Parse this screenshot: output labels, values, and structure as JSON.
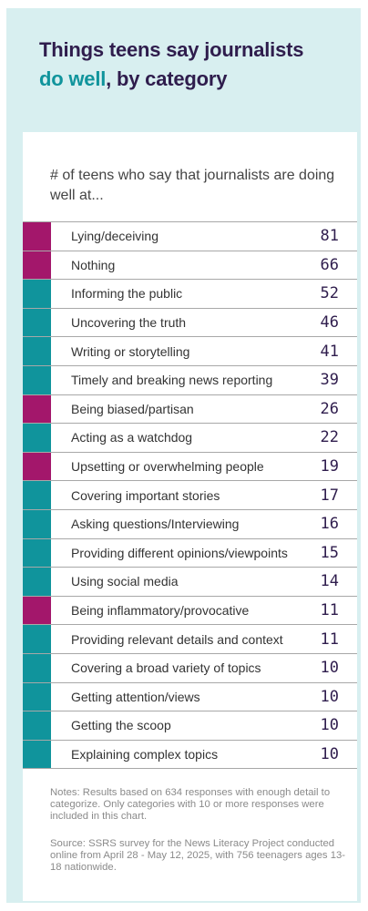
{
  "colors": {
    "negative": "#a3176b",
    "positive": "#10949c",
    "title_dark": "#2f1d4d",
    "title_accent": "#10949c"
  },
  "header": {
    "title_line1": "Things teens say journalists",
    "title_accent": "do well",
    "title_rest": ", by category"
  },
  "chart_data": {
    "type": "table",
    "subtitle": "# of teens who say that journalists are doing well at...",
    "rows": [
      {
        "label": "Lying/deceiving",
        "value": 81,
        "group": "negative"
      },
      {
        "label": "Nothing",
        "value": 66,
        "group": "negative"
      },
      {
        "label": "Informing the public",
        "value": 52,
        "group": "positive"
      },
      {
        "label": "Uncovering the truth",
        "value": 46,
        "group": "positive"
      },
      {
        "label": "Writing or storytelling",
        "value": 41,
        "group": "positive"
      },
      {
        "label": "Timely and breaking news reporting",
        "value": 39,
        "group": "positive"
      },
      {
        "label": "Being biased/partisan",
        "value": 26,
        "group": "negative"
      },
      {
        "label": "Acting as a watchdog",
        "value": 22,
        "group": "positive"
      },
      {
        "label": "Upsetting or overwhelming people",
        "value": 19,
        "group": "negative"
      },
      {
        "label": "Covering important stories",
        "value": 17,
        "group": "positive"
      },
      {
        "label": "Asking questions/Interviewing",
        "value": 16,
        "group": "positive"
      },
      {
        "label": "Providing different opinions/viewpoints",
        "value": 15,
        "group": "positive"
      },
      {
        "label": "Using social media",
        "value": 14,
        "group": "positive"
      },
      {
        "label": "Being inflammatory/provocative",
        "value": 11,
        "group": "negative"
      },
      {
        "label": "Providing relevant details and context",
        "value": 11,
        "group": "positive"
      },
      {
        "label": "Covering a broad variety of topics",
        "value": 10,
        "group": "positive"
      },
      {
        "label": "Getting attention/views",
        "value": 10,
        "group": "positive"
      },
      {
        "label": "Getting the scoop",
        "value": 10,
        "group": "positive"
      },
      {
        "label": "Explaining complex topics",
        "value": 10,
        "group": "positive"
      }
    ]
  },
  "footer": {
    "notes": "Notes: Results based on 634 responses with enough detail to categorize. Only categories with 10 or more responses were included in this chart.",
    "source": "Source: SSRS survey for the News Literacy Project conducted online from April 28 - May 12, 2025, with 756 teenagers ages 13-18 nationwide."
  }
}
